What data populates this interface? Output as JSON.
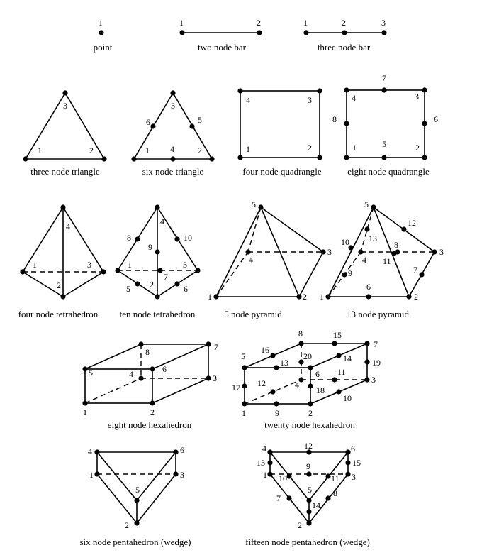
{
  "captions": {
    "point": "point",
    "two_node_bar": "two node bar",
    "three_node_bar": "three node bar",
    "three_node_triangle": "three node triangle",
    "six_node_triangle": "six node triangle",
    "four_node_quadrangle": "four node quadrangle",
    "eight_node_quadrangle": "eight node quadrangle",
    "four_node_tetrahedron": "four node tetrahedron",
    "ten_node_tetrahedron": "ten node tetrahedron",
    "five_node_pyramid": "5 node pyramid",
    "thirteen_node_pyramid": "13 node pyramid",
    "eight_node_hexahedron": "eight node hexahedron",
    "twenty_node_hexahedron": "twenty node hexahedron",
    "six_node_pentahedron": "six node pentahedron (wedge)",
    "fifteen_node_pentahedron": "fifteen node pentahedron (wedge)"
  },
  "labels": {
    "n1": "1",
    "n2": "2",
    "n3": "3",
    "n4": "4",
    "n5": "5",
    "n6": "6",
    "n7": "7",
    "n8": "8",
    "n9": "9",
    "n10": "10",
    "n11": "11",
    "n12": "12",
    "n13": "13",
    "n14": "14",
    "n15": "15",
    "n16": "16",
    "n17": "17",
    "n18": "18",
    "n19": "19",
    "n20": "20"
  }
}
